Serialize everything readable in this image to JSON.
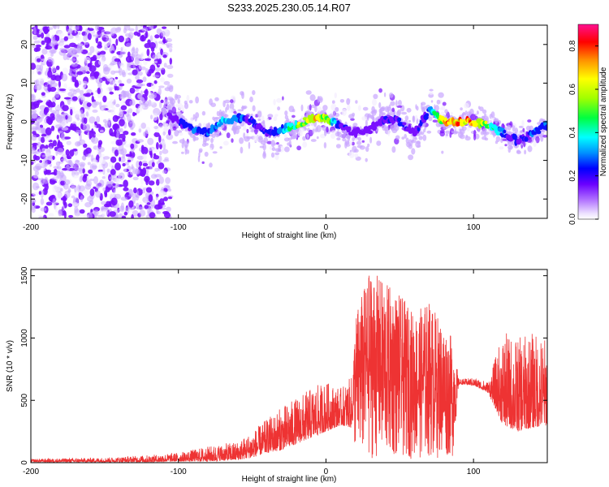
{
  "figure_title": "S233.2025.230.05.14.R07",
  "chart_data": [
    {
      "type": "heatmap",
      "title": "S233.2025.230.05.14.R07",
      "xlabel": "Height of straight line (km)",
      "ylabel": "Frequency (Hz)",
      "xlim": [
        -200,
        150
      ],
      "ylim": [
        -25,
        25
      ],
      "xticks": [
        -200,
        -100,
        0,
        100
      ],
      "yticks": [
        -20,
        -10,
        0,
        10,
        20
      ],
      "tick_labels_x": [
        "-200",
        "-100",
        "0",
        "100"
      ],
      "tick_labels_y": [
        "-20",
        "-10",
        "0",
        "10",
        "20"
      ],
      "colorbar": {
        "label": "Normalized spectral amplitude",
        "range": [
          0,
          0.9
        ],
        "ticks": [
          0,
          0.2,
          0.4,
          0.6,
          0.8
        ],
        "tick_labels": [
          "0.0",
          "0.2",
          "0.4",
          "0.6",
          "0.8"
        ]
      },
      "ridge": {
        "description_points_x_km": [
          -110,
          -100,
          -90,
          -80,
          -70,
          -60,
          -50,
          -40,
          -30,
          -20,
          -10,
          0,
          10,
          20,
          30,
          40,
          50,
          60,
          70,
          80,
          90,
          100,
          110,
          120,
          130,
          140,
          150
        ],
        "center_freq_hz": [
          3,
          0,
          -2,
          -3,
          0,
          1,
          0,
          -3,
          -2,
          -1,
          1,
          1,
          -1,
          -3,
          -2,
          1,
          0,
          -3,
          3,
          0,
          0,
          0,
          -1,
          -3,
          -5,
          -3,
          -1
        ],
        "amplitude": [
          0.2,
          0.3,
          0.4,
          0.4,
          0.5,
          0.5,
          0.3,
          0.35,
          0.4,
          0.7,
          0.85,
          0.8,
          0.3,
          0.25,
          0.25,
          0.3,
          0.35,
          0.3,
          0.4,
          0.9,
          0.95,
          0.95,
          0.7,
          0.4,
          0.3,
          0.4,
          0.4
        ]
      }
    },
    {
      "type": "line",
      "xlabel": "Height of straight line (km)",
      "ylabel": "SNR (10 * v/v)",
      "xlim": [
        -200,
        150
      ],
      "ylim": [
        0,
        1550
      ],
      "xticks": [
        -200,
        -100,
        0,
        100
      ],
      "yticks": [
        0,
        500,
        1000,
        1500
      ],
      "tick_labels_x": [
        "-200",
        "-100",
        "0",
        "100"
      ],
      "tick_labels_y": [
        "0",
        "500",
        "1000",
        "1500"
      ],
      "color": "#ee3333",
      "series": [
        {
          "name": "SNR",
          "envelope_x_km": [
            -200,
            -150,
            -120,
            -100,
            -80,
            -60,
            -50,
            -40,
            -30,
            -20,
            -10,
            0,
            10,
            18,
            20,
            30,
            40,
            50,
            60,
            70,
            80,
            86,
            90,
            100,
            110,
            120,
            130,
            140,
            150
          ],
          "envelope_max": [
            30,
            40,
            60,
            80,
            130,
            170,
            250,
            350,
            450,
            520,
            600,
            650,
            600,
            700,
            1200,
            1550,
            1450,
            1350,
            1200,
            1300,
            1100,
            1000,
            670,
            680,
            650,
            1050,
            1000,
            1050,
            1000
          ],
          "envelope_min": [
            5,
            5,
            5,
            10,
            10,
            20,
            40,
            80,
            100,
            150,
            200,
            250,
            300,
            280,
            50,
            30,
            30,
            30,
            30,
            30,
            40,
            40,
            630,
            620,
            560,
            300,
            250,
            280,
            300
          ]
        }
      ]
    }
  ]
}
